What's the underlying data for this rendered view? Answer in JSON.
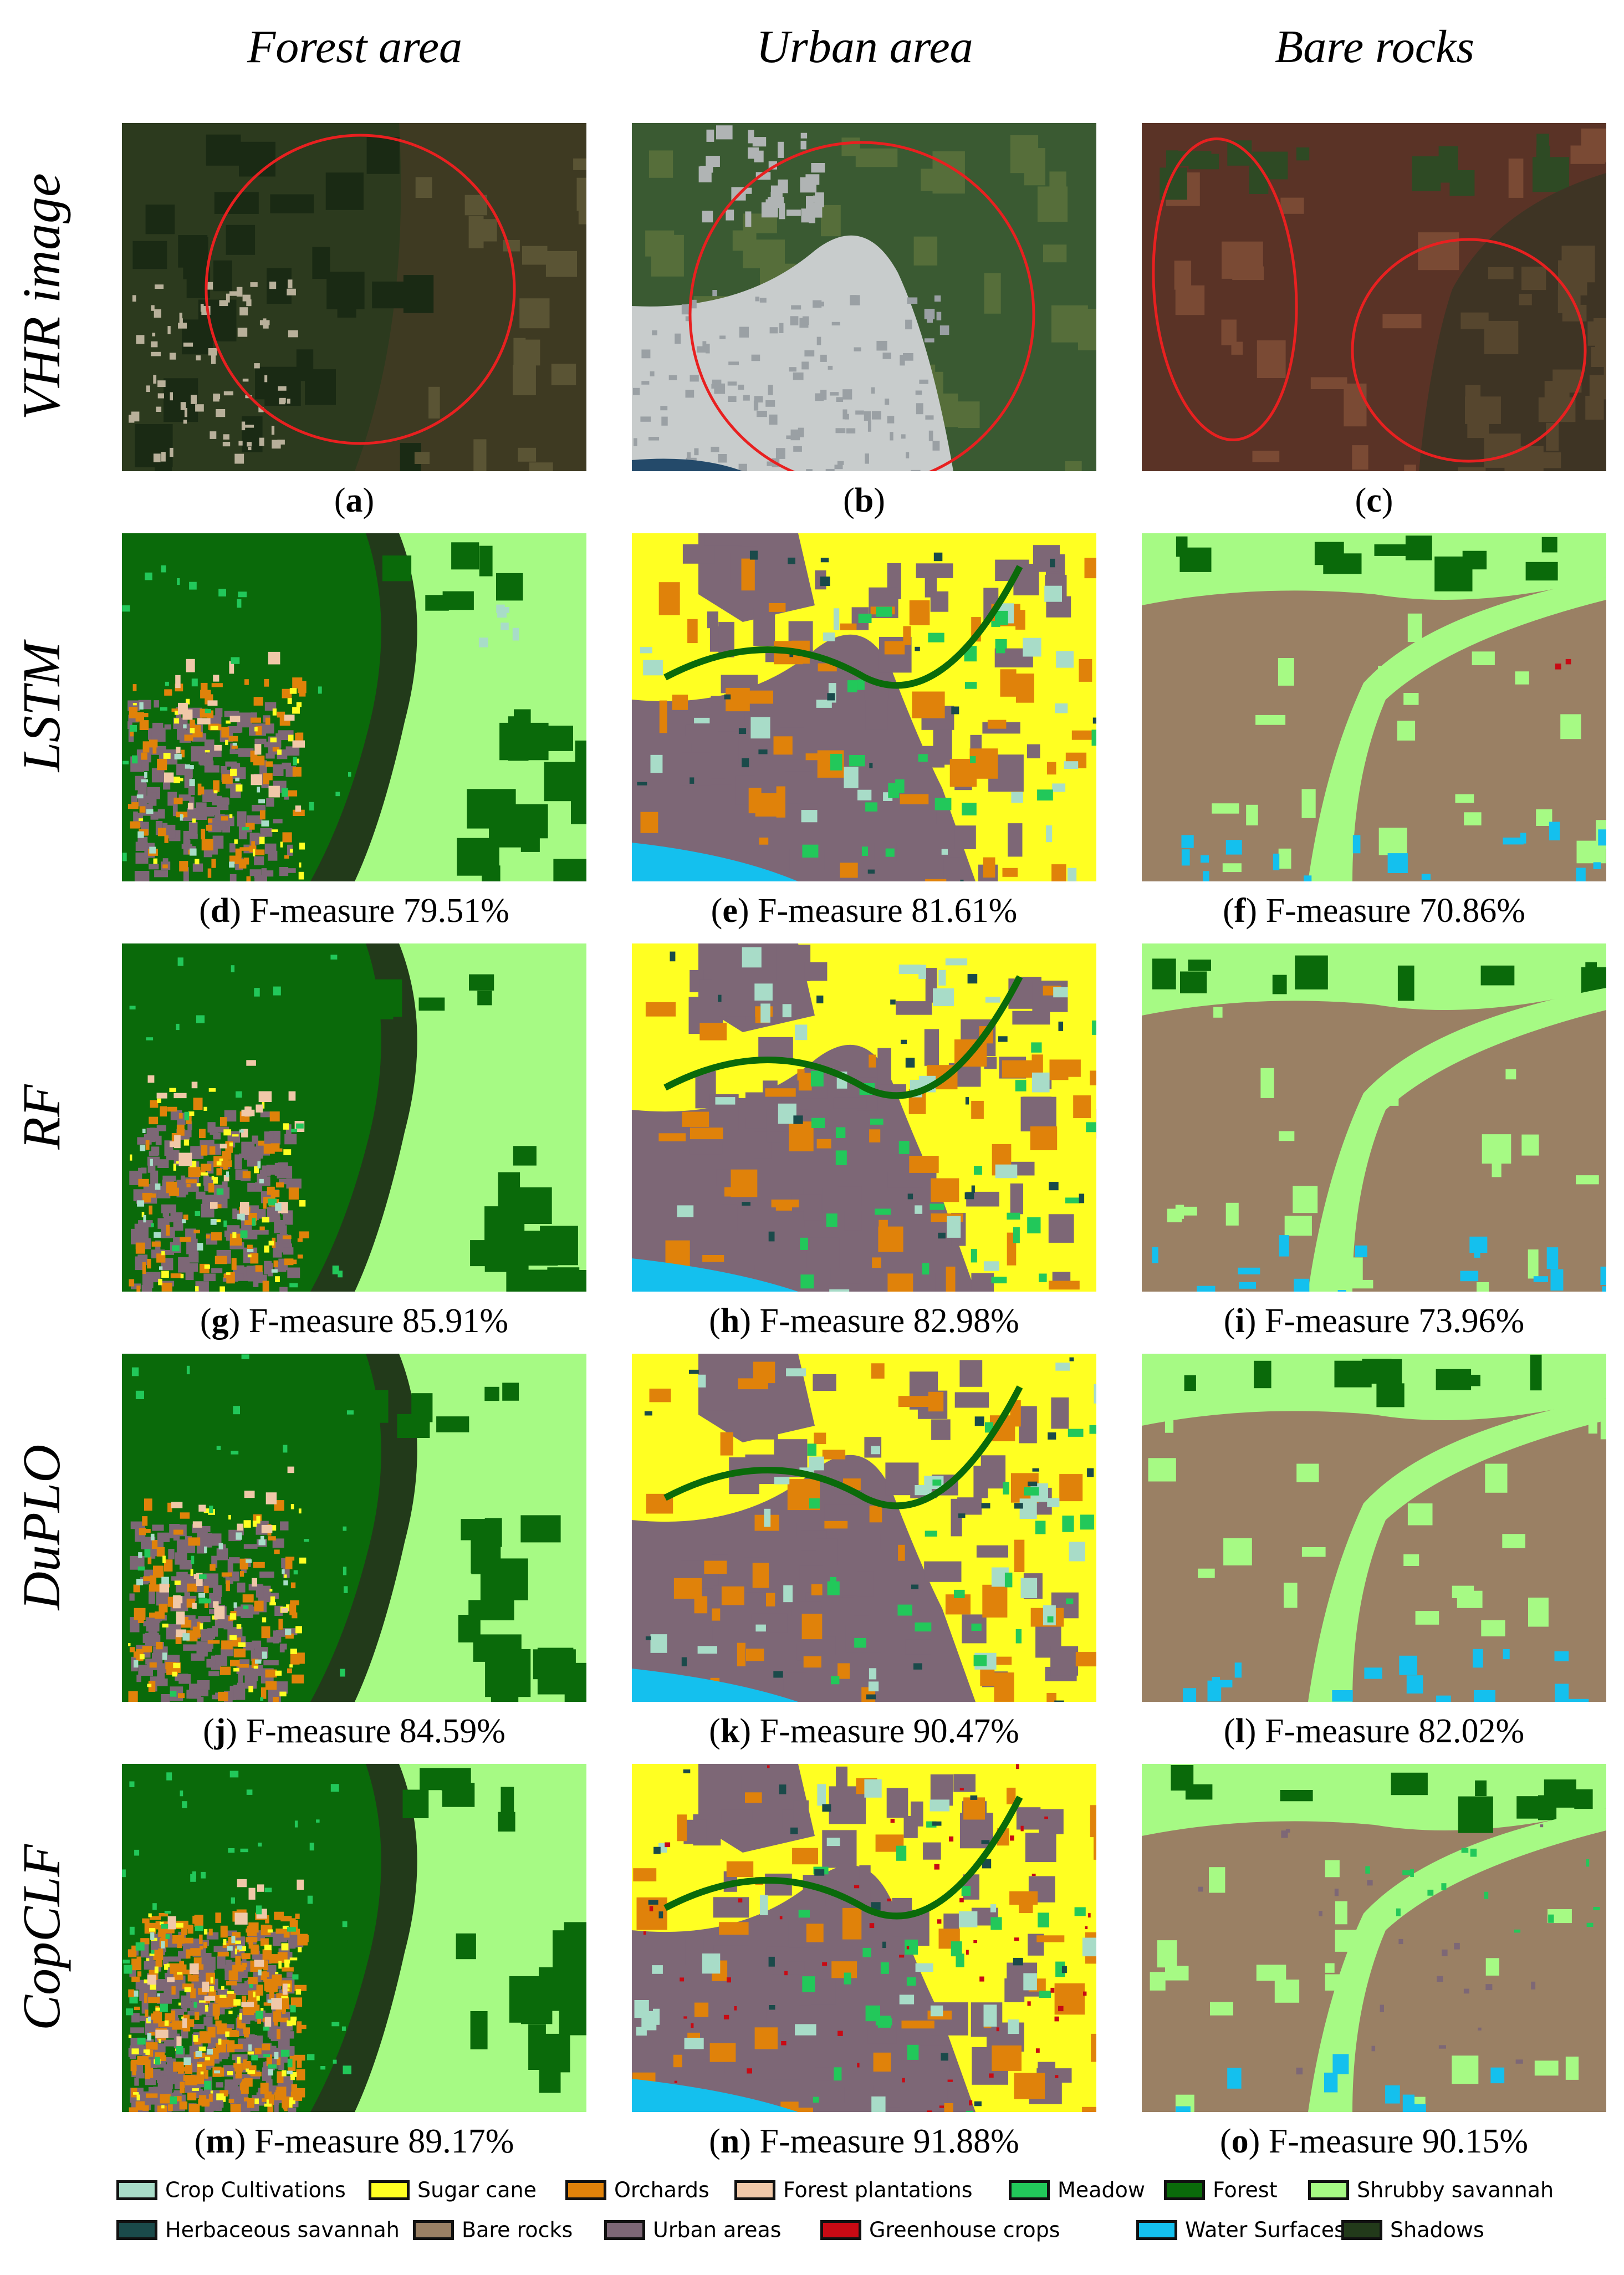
{
  "columns": [
    "Forest area",
    "Urban area",
    "Bare rocks"
  ],
  "rows": [
    "VHR image",
    "LSTM",
    "RF",
    "DuPLO",
    "CopCLF"
  ],
  "panels": [
    {
      "letter": "a",
      "text": ""
    },
    {
      "letter": "b",
      "text": ""
    },
    {
      "letter": "c",
      "text": ""
    },
    {
      "letter": "d",
      "text": "F-measure 79.51%"
    },
    {
      "letter": "e",
      "text": "F-measure 81.61%"
    },
    {
      "letter": "f",
      "text": "F-measure 70.86%"
    },
    {
      "letter": "g",
      "text": "F-measure 85.91%"
    },
    {
      "letter": "h",
      "text": "F-measure 82.98%"
    },
    {
      "letter": "i",
      "text": "F-measure 73.96%"
    },
    {
      "letter": "j",
      "text": "F-measure 84.59%"
    },
    {
      "letter": "k",
      "text": "F-measure 90.47%"
    },
    {
      "letter": "l",
      "text": "F-measure 82.02%"
    },
    {
      "letter": "m",
      "text": "F-measure 89.17%"
    },
    {
      "letter": "n",
      "text": "F-measure 91.88%"
    },
    {
      "letter": "o",
      "text": "F-measure 90.15%"
    }
  ],
  "legend": [
    {
      "label": "Crop Cultivations",
      "color": "#a8dcc8"
    },
    {
      "label": "Sugar cane",
      "color": "#ffff22"
    },
    {
      "label": "Orchards",
      "color": "#e0820a"
    },
    {
      "label": "Forest plantations",
      "color": "#f0c8a8"
    },
    {
      "label": "Meadow",
      "color": "#22c85a"
    },
    {
      "label": "Forest",
      "color": "#0a6a0a"
    },
    {
      "label": "Shrubby savannah",
      "color": "#a6fa84"
    },
    {
      "label": "Herbaceous savannah",
      "color": "#1a4a4a"
    },
    {
      "label": "Bare rocks",
      "color": "#9a8064"
    },
    {
      "label": "Urban areas",
      "color": "#7d6776"
    },
    {
      "label": "Greenhouse crops",
      "color": "#c80a14"
    },
    {
      "label": "Water Surfaces",
      "color": "#14c0ee"
    },
    {
      "label": "Shadows",
      "color": "#223a1a"
    }
  ],
  "palette": {
    "forest": "#0a6a0a",
    "shrub": "#a6fa84",
    "shadow": "#223a1a",
    "urban": "#7d6776",
    "orchard": "#e0820a",
    "sugar": "#ffff22",
    "rock": "#9a8064",
    "water": "#14c0ee",
    "crop": "#a8dcc8",
    "meadow": "#22c85a",
    "greenhouse": "#c80a14",
    "plantation": "#f0c8a8",
    "herb": "#1a4a4a",
    "circle": "#e82020"
  }
}
